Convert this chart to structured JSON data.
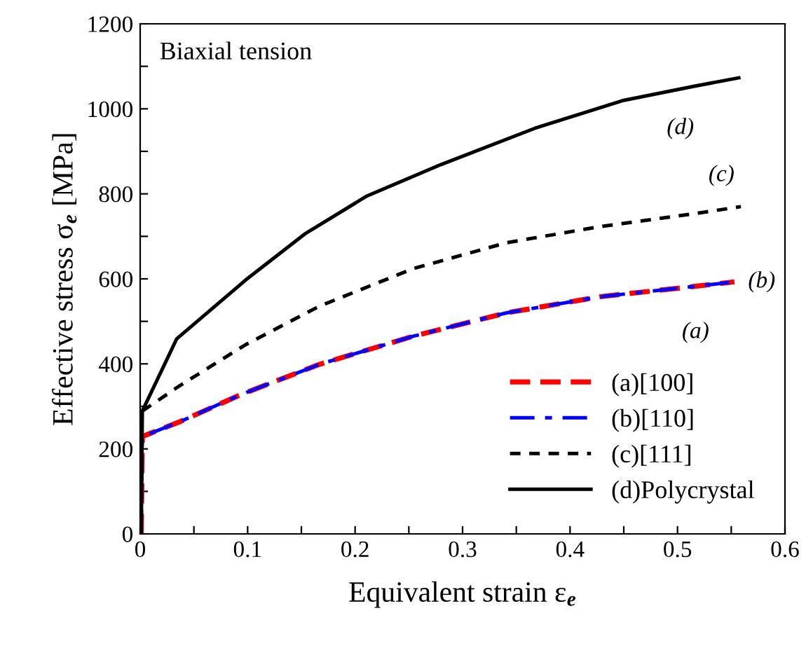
{
  "chart_data": {
    "type": "line",
    "title": "Biaxial tension",
    "xlabel": "Equivalent strain ε$_{e}$",
    "ylabel": "Effective stress σ$_{e}$ [MPa]",
    "xlim": [
      0,
      0.6
    ],
    "ylim": [
      0,
      1200
    ],
    "xticks": [
      0,
      0.1,
      0.2,
      0.3,
      0.4,
      0.5,
      0.6,
      {
        "value": 0.05,
        "label": null
      },
      {
        "value": 0.15,
        "label": null
      },
      {
        "value": 0.25,
        "label": null
      },
      {
        "value": 0.35,
        "label": null
      },
      {
        "value": 0.45,
        "label": null
      },
      {
        "value": 0.55,
        "label": null
      }
    ],
    "yticks": [
      0,
      200,
      400,
      600,
      800,
      1000,
      1200,
      {
        "value": 100,
        "label": null
      },
      {
        "value": 300,
        "label": null
      },
      {
        "value": 500,
        "label": null
      },
      {
        "value": 700,
        "label": null
      },
      {
        "value": 900,
        "label": null
      },
      {
        "value": 1100,
        "label": null
      }
    ],
    "grid": false,
    "legend": "bottom right",
    "marker": "none",
    "series": [
      {
        "name": "(a)[100]",
        "color": "#ff0000",
        "line_style": "dashed",
        "x": [
          0.001,
          0.002,
          0.037,
          0.093,
          0.167,
          0.254,
          0.341,
          0.428,
          0.515,
          0.553
        ],
        "values": [
          0,
          229,
          264,
          327,
          399,
          465,
          520,
          558,
          582,
          593
        ]
      },
      {
        "name": "(b)[110]",
        "color": "#0000ff",
        "line_style": "dashdot",
        "x": [
          0.001,
          0.002,
          0.037,
          0.093,
          0.167,
          0.254,
          0.341,
          0.428,
          0.515,
          0.553
        ],
        "values": [
          0,
          229,
          264,
          327,
          399,
          465,
          520,
          558,
          582,
          593
        ]
      },
      {
        "name": "(c)[111]",
        "color": "#000000",
        "line_style": "dotted",
        "x": [
          0.002,
          0.037,
          0.098,
          0.167,
          0.254,
          0.341,
          0.428,
          0.515,
          0.559
        ],
        "values": [
          289,
          349,
          445,
          536,
          624,
          685,
          723,
          753,
          770
        ]
      },
      {
        "name": "(d)Polycrystal",
        "color": "#000000",
        "line_style": "solid",
        "x": [
          0.001,
          0.002,
          0.034,
          0.098,
          0.154,
          0.211,
          0.28,
          0.367,
          0.45,
          0.515,
          0.557
        ],
        "values": [
          0,
          289,
          459,
          597,
          707,
          795,
          869,
          954,
          1020,
          1053,
          1073
        ]
      }
    ],
    "annotations": [
      "(a)",
      "(b)",
      "(c)",
      "(d)"
    ]
  }
}
